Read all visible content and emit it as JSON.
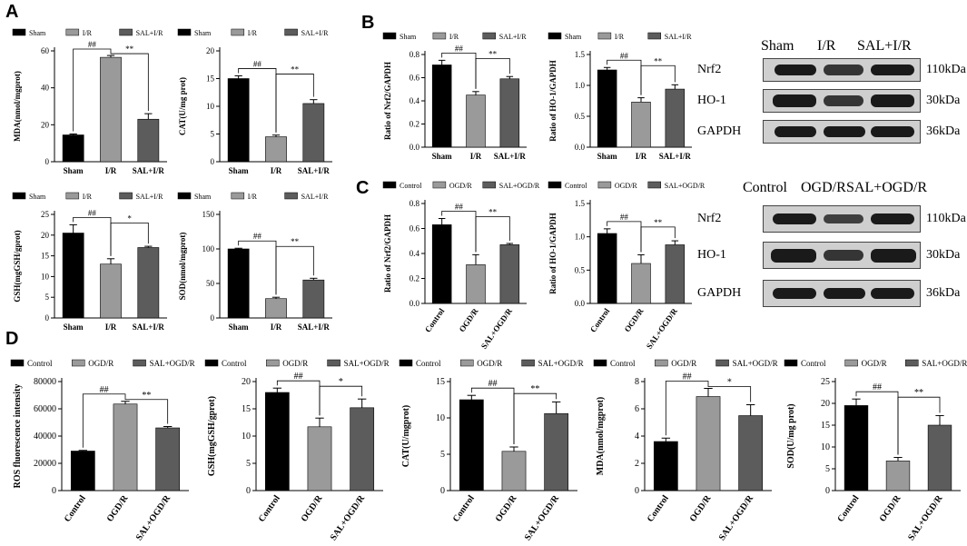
{
  "panels": {
    "A": "A",
    "B": "B",
    "C": "C",
    "D": "D"
  },
  "series_colors": [
    "#000000",
    "#9a9a9a",
    "#5c5c5c"
  ],
  "chart_data": [
    {
      "id": "a1",
      "type": "bar",
      "categories": [
        "Sham",
        "I/R",
        "SAL+I/R"
      ],
      "values": [
        14.5,
        56.5,
        23
      ],
      "errors": [
        0.5,
        1,
        3
      ],
      "ylabel": "MDA(nmol/mgprot)",
      "ylim": [
        0,
        60
      ],
      "ticks": [
        0,
        20,
        40,
        60
      ],
      "legend": [
        "Sham",
        "I/R",
        "SAL+I/R"
      ],
      "annotations": [
        {
          "label": "##",
          "from": 0,
          "to": 1
        },
        {
          "label": "**",
          "from": 1,
          "to": 2
        }
      ]
    },
    {
      "id": "a2",
      "type": "bar",
      "categories": [
        "Sham",
        "I/R",
        "SAL+I/R"
      ],
      "values": [
        15,
        4.5,
        10.5
      ],
      "errors": [
        0.5,
        0.3,
        0.7
      ],
      "ylabel": "CAT(U/mg prot)",
      "ylim": [
        0,
        20
      ],
      "ticks": [
        0,
        5,
        10,
        15,
        20
      ],
      "legend": [
        "Sham",
        "I/R",
        "SAL+I/R"
      ],
      "annotations": [
        {
          "label": "##",
          "from": 0,
          "to": 1
        },
        {
          "label": "**",
          "from": 1,
          "to": 2
        }
      ]
    },
    {
      "id": "a3",
      "type": "bar",
      "categories": [
        "Sham",
        "I/R",
        "SAL+I/R"
      ],
      "values": [
        20.5,
        13,
        17
      ],
      "errors": [
        2,
        1.3,
        0.3
      ],
      "ylabel": "GSH(mgGSH/gprot)",
      "ylim": [
        0,
        25
      ],
      "ticks": [
        0,
        5,
        10,
        15,
        20,
        25
      ],
      "legend": [
        "Sham",
        "I/R",
        "SAL+I/R"
      ],
      "annotations": [
        {
          "label": "##",
          "from": 0,
          "to": 1
        },
        {
          "label": "*",
          "from": 1,
          "to": 2
        }
      ]
    },
    {
      "id": "a4",
      "type": "bar",
      "categories": [
        "Sham",
        "I/R",
        "SAL+I/R"
      ],
      "values": [
        100,
        28,
        55
      ],
      "errors": [
        1,
        2,
        2.5
      ],
      "ylabel": "SOD(nmol/mgprot)",
      "ylim": [
        0,
        150
      ],
      "ticks": [
        0,
        50,
        100,
        150
      ],
      "legend": [
        "Sham",
        "I/R",
        "SAL+I/R"
      ],
      "annotations": [
        {
          "label": "##",
          "from": 0,
          "to": 1
        },
        {
          "label": "**",
          "from": 1,
          "to": 2
        }
      ]
    },
    {
      "id": "b1",
      "type": "bar",
      "categories": [
        "Sham",
        "I/R",
        "SAL+I/R"
      ],
      "values": [
        0.71,
        0.45,
        0.59
      ],
      "errors": [
        0.04,
        0.03,
        0.02
      ],
      "ylabel": "Ratio of Nrf2/GAPDH",
      "ylim": [
        0,
        0.8
      ],
      "ticks": [
        0.0,
        0.2,
        0.4,
        0.6,
        0.8
      ],
      "legend": [
        "Sham",
        "I/R",
        "SAL+I/R"
      ],
      "annotations": [
        {
          "label": "##",
          "from": 0,
          "to": 1
        },
        {
          "label": "**",
          "from": 1,
          "to": 2
        }
      ]
    },
    {
      "id": "b2",
      "type": "bar",
      "categories": [
        "Sham",
        "I/R",
        "SAL+I/R"
      ],
      "values": [
        1.25,
        0.73,
        0.94
      ],
      "errors": [
        0.04,
        0.07,
        0.07
      ],
      "ylabel": "Ratio of HO-1/GAPDH",
      "ylim": [
        0,
        1.5
      ],
      "ticks": [
        0.0,
        0.5,
        1.0,
        1.5
      ],
      "legend": [
        "Sham",
        "I/R",
        "SAL+I/R"
      ],
      "annotations": [
        {
          "label": "##",
          "from": 0,
          "to": 1
        },
        {
          "label": "**",
          "from": 1,
          "to": 2
        }
      ]
    },
    {
      "id": "c1",
      "type": "bar",
      "categories": [
        "Control",
        "OGD/R",
        "SAL+OGD/R"
      ],
      "values": [
        0.63,
        0.31,
        0.47
      ],
      "errors": [
        0.05,
        0.08,
        0.01
      ],
      "ylabel": "Ratio of Nrf2/GAPDH",
      "ylim": [
        0,
        0.8
      ],
      "ticks": [
        0.0,
        0.2,
        0.4,
        0.6,
        0.8
      ],
      "legend": [
        "Control",
        "OGD/R",
        "SAL+OGD/R"
      ],
      "annotations": [
        {
          "label": "##",
          "from": 0,
          "to": 1
        },
        {
          "label": "**",
          "from": 1,
          "to": 2
        }
      ]
    },
    {
      "id": "c2",
      "type": "bar",
      "categories": [
        "Control",
        "OGD/R",
        "SAL+OGD/R"
      ],
      "values": [
        1.05,
        0.6,
        0.88
      ],
      "errors": [
        0.07,
        0.13,
        0.06
      ],
      "ylabel": "Ratio of HO-1/GAPDH",
      "ylim": [
        0,
        1.5
      ],
      "ticks": [
        0.0,
        0.5,
        1.0,
        1.5
      ],
      "legend": [
        "Control",
        "OGD/R",
        "SAL+OGD/R"
      ],
      "annotations": [
        {
          "label": "##",
          "from": 0,
          "to": 1
        },
        {
          "label": "**",
          "from": 1,
          "to": 2
        }
      ]
    },
    {
      "id": "d1",
      "type": "bar",
      "categories": [
        "Control",
        "OGD/R",
        "SAL+OGD/R"
      ],
      "values": [
        29000,
        63500,
        46000
      ],
      "errors": [
        500,
        2000,
        1000
      ],
      "ylabel": "ROS fluorescence intensity",
      "ylim": [
        0,
        80000
      ],
      "ticks": [
        0,
        20000,
        40000,
        60000,
        80000
      ],
      "legend": [
        "Control",
        "OGD/R",
        "SAL+OGD/R"
      ],
      "annotations": [
        {
          "label": "##",
          "from": 0,
          "to": 1
        },
        {
          "label": "**",
          "from": 1,
          "to": 2
        }
      ]
    },
    {
      "id": "d2",
      "type": "bar",
      "categories": [
        "Control",
        "OGD/R",
        "SAL+OGD/R"
      ],
      "values": [
        18,
        11.7,
        15.2
      ],
      "errors": [
        0.8,
        1.6,
        1.6
      ],
      "ylabel": "GSH(mgGSH/gprot)",
      "ylim": [
        0,
        20
      ],
      "ticks": [
        0,
        5,
        10,
        15,
        20
      ],
      "legend": [
        "Control",
        "OGD/R",
        "SAL+OGD/R"
      ],
      "annotations": [
        {
          "label": "##",
          "from": 0,
          "to": 1
        },
        {
          "label": "*",
          "from": 1,
          "to": 2
        }
      ]
    },
    {
      "id": "d3",
      "type": "bar",
      "categories": [
        "Control",
        "OGD/R",
        "SAL+OGD/R"
      ],
      "values": [
        12.5,
        5.4,
        10.6
      ],
      "errors": [
        0.6,
        0.6,
        1.6
      ],
      "ylabel": "CAT(U/mgprot)",
      "ylim": [
        0,
        15
      ],
      "ticks": [
        0,
        5,
        10,
        15
      ],
      "legend": [
        "Control",
        "OGD/R",
        "SAL+OGD/R"
      ],
      "annotations": [
        {
          "label": "##",
          "from": 0,
          "to": 1
        },
        {
          "label": "**",
          "from": 1,
          "to": 2
        }
      ]
    },
    {
      "id": "d4",
      "type": "bar",
      "categories": [
        "Control",
        "OGD/R",
        "SAL+OGD/R"
      ],
      "values": [
        3.6,
        6.9,
        5.5
      ],
      "errors": [
        0.25,
        0.6,
        0.8
      ],
      "ylabel": "MDA(nmol/mgprot)",
      "ylim": [
        0,
        8
      ],
      "ticks": [
        0,
        2,
        4,
        6,
        8
      ],
      "legend": [
        "Control",
        "OGD/R",
        "SAL+OGD/R"
      ],
      "annotations": [
        {
          "label": "##",
          "from": 0,
          "to": 1
        },
        {
          "label": "*",
          "from": 1,
          "to": 2
        }
      ]
    },
    {
      "id": "d5",
      "type": "bar",
      "categories": [
        "Control",
        "OGD/R",
        "SAL+OGD/R"
      ],
      "values": [
        19.5,
        6.8,
        15
      ],
      "errors": [
        1.5,
        0.8,
        2.2
      ],
      "ylabel": "SOD(U/mg prot)",
      "ylim": [
        0,
        25
      ],
      "ticks": [
        0,
        5,
        10,
        15,
        20,
        25
      ],
      "legend": [
        "Control",
        "OGD/R",
        "SAL+OGD/R"
      ],
      "annotations": [
        {
          "label": "##",
          "from": 0,
          "to": 1
        },
        {
          "label": "**",
          "from": 1,
          "to": 2
        }
      ]
    }
  ],
  "blots": {
    "b": {
      "headers": [
        "Sham",
        "I/R",
        "SAL+I/R"
      ],
      "rows": [
        {
          "protein": "Nrf2",
          "kda": "110kDa"
        },
        {
          "protein": "HO-1",
          "kda": "30kDa"
        },
        {
          "protein": "GAPDH",
          "kda": "36kDa"
        }
      ]
    },
    "c": {
      "headers": [
        "Control",
        "OGD/R",
        "SAL+OGD/R"
      ],
      "rows": [
        {
          "protein": "Nrf2",
          "kda": "110kDa"
        },
        {
          "protein": "HO-1",
          "kda": "30kDa"
        },
        {
          "protein": "GAPDH",
          "kda": "36kDa"
        }
      ]
    }
  }
}
